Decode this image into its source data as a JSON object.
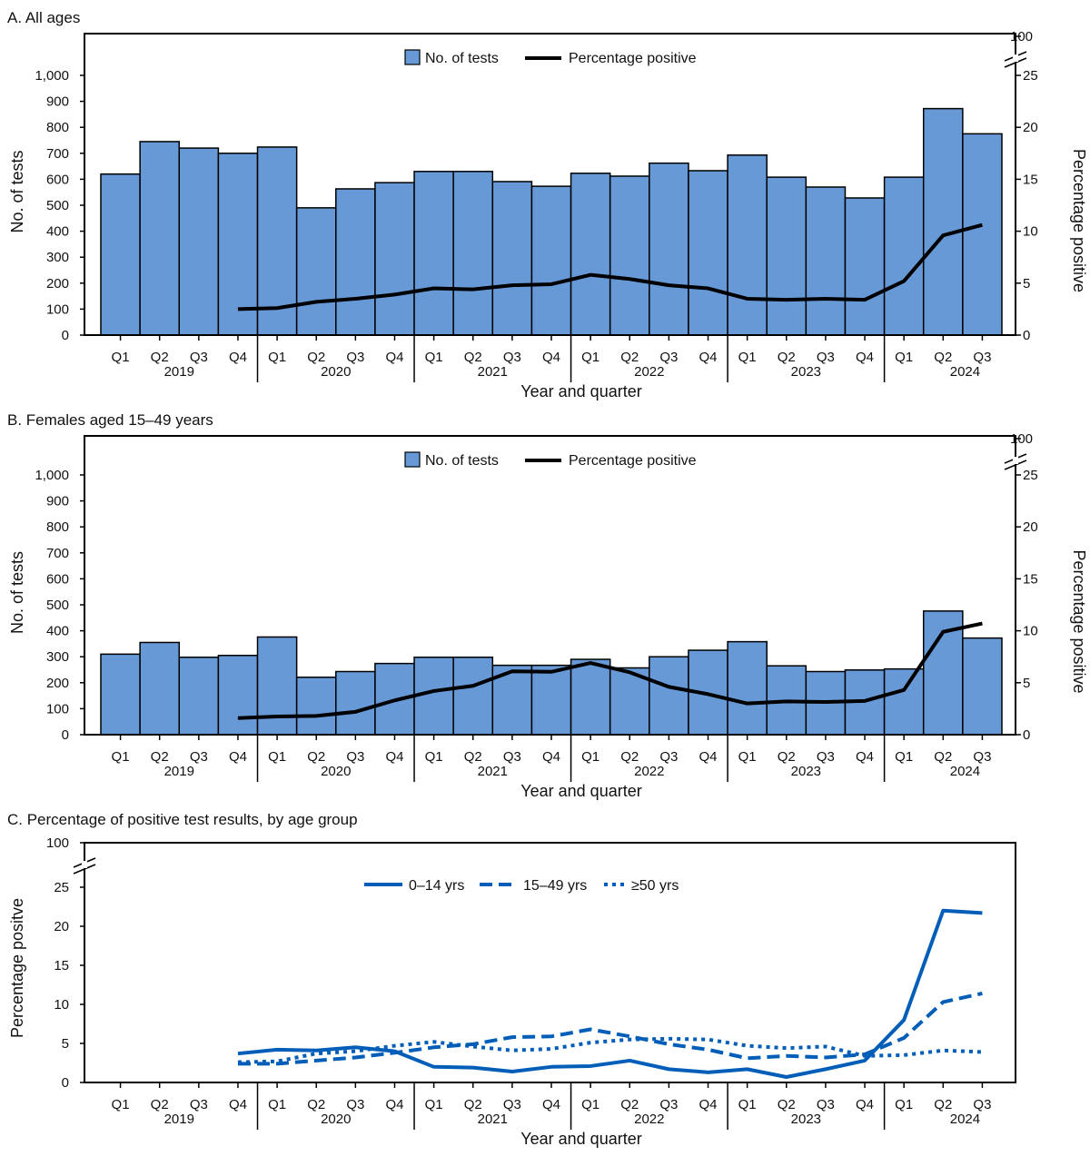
{
  "chart_data": [
    {
      "type": "bar+line",
      "title": "A. All ages",
      "categories": [
        "Q1",
        "Q2",
        "Q3",
        "Q4",
        "Q1",
        "Q2",
        "Q3",
        "Q4",
        "Q1",
        "Q2",
        "Q3",
        "Q4",
        "Q1",
        "Q2",
        "Q3",
        "Q4",
        "Q1",
        "Q2",
        "Q3",
        "Q4",
        "Q1",
        "Q2",
        "Q3"
      ],
      "years": [
        "2019",
        "2020",
        "2021",
        "2022",
        "2023",
        "2024"
      ],
      "xlabel": "Year and quarter",
      "ylabel": "No. of tests",
      "y2label": "Percentage positive",
      "ylim": [
        0,
        1000
      ],
      "yticks": [
        "0",
        "100",
        "200",
        "300",
        "400",
        "500",
        "600",
        "700",
        "800",
        "900",
        "1,000"
      ],
      "y2lim": [
        0,
        25
      ],
      "y2ticks": [
        "0",
        "5",
        "10",
        "15",
        "20",
        "25"
      ],
      "y2break_label": "100",
      "legend": [
        "No. of tests",
        "Percentage positive"
      ],
      "legend_position": "top-center",
      "bar_values": [
        620,
        745,
        720,
        700,
        724,
        490,
        563,
        587,
        630,
        630,
        591,
        573,
        623,
        612,
        662,
        633,
        693,
        608,
        570,
        528,
        608,
        872,
        775
      ],
      "line_values": [
        null,
        null,
        null,
        2.5,
        2.6,
        3.2,
        3.5,
        3.9,
        4.5,
        4.4,
        4.8,
        4.9,
        5.8,
        5.4,
        4.8,
        4.5,
        3.5,
        3.4,
        3.5,
        3.4,
        5.2,
        9.6,
        10.6
      ]
    },
    {
      "type": "bar+line",
      "title": "B. Females aged 15–49 years",
      "categories": [
        "Q1",
        "Q2",
        "Q3",
        "Q4",
        "Q1",
        "Q2",
        "Q3",
        "Q4",
        "Q1",
        "Q2",
        "Q3",
        "Q4",
        "Q1",
        "Q2",
        "Q3",
        "Q4",
        "Q1",
        "Q2",
        "Q3",
        "Q4",
        "Q1",
        "Q2",
        "Q3"
      ],
      "years": [
        "2019",
        "2020",
        "2021",
        "2022",
        "2023",
        "2024"
      ],
      "xlabel": "Year and quarter",
      "ylabel": "No. of tests",
      "y2label": "Percentage positive",
      "ylim": [
        0,
        1000
      ],
      "yticks": [
        "0",
        "100",
        "200",
        "300",
        "400",
        "500",
        "600",
        "700",
        "800",
        "900",
        "1,000"
      ],
      "y2lim": [
        0,
        25
      ],
      "y2ticks": [
        "0",
        "5",
        "10",
        "15",
        "20",
        "25"
      ],
      "y2break_label": "100",
      "legend": [
        "No. of tests",
        "Percentage positive"
      ],
      "legend_position": "top-center",
      "bar_values": [
        310,
        355,
        298,
        305,
        376,
        221,
        243,
        274,
        298,
        298,
        267,
        267,
        290,
        257,
        300,
        325,
        358,
        265,
        243,
        249,
        253,
        476,
        372
      ],
      "line_values": [
        null,
        null,
        null,
        1.6,
        1.75,
        1.8,
        2.2,
        3.3,
        4.2,
        4.7,
        6.1,
        6.05,
        6.9,
        6.0,
        4.6,
        3.9,
        3.0,
        3.2,
        3.15,
        3.25,
        4.3,
        9.9,
        10.7
      ]
    },
    {
      "type": "line",
      "title": "C. Percentage of positive test results, by age group",
      "categories": [
        "Q1",
        "Q2",
        "Q3",
        "Q4",
        "Q1",
        "Q2",
        "Q3",
        "Q4",
        "Q1",
        "Q2",
        "Q3",
        "Q4",
        "Q1",
        "Q2",
        "Q3",
        "Q4",
        "Q1",
        "Q2",
        "Q3",
        "Q4",
        "Q1",
        "Q2",
        "Q3"
      ],
      "years": [
        "2019",
        "2020",
        "2021",
        "2022",
        "2023",
        "2024"
      ],
      "xlabel": "Year and quarter",
      "ylabel": "Percentage positve",
      "ylim": [
        0,
        25
      ],
      "yticks": [
        "0",
        "5",
        "10",
        "15",
        "20",
        "25"
      ],
      "ybreak_label": "100",
      "legend_position": "top-center",
      "series": [
        {
          "name": "0–14 yrs",
          "style": "solid",
          "values": [
            null,
            null,
            null,
            3.7,
            4.2,
            4.1,
            4.5,
            4.0,
            2.0,
            1.9,
            1.4,
            2.0,
            2.1,
            2.8,
            1.7,
            1.3,
            1.7,
            0.7,
            1.7,
            2.8,
            8.0,
            22.0,
            21.7
          ]
        },
        {
          "name": "15–49 yrs",
          "style": "dashed",
          "values": [
            null,
            null,
            null,
            2.4,
            2.4,
            2.8,
            3.2,
            3.8,
            4.5,
            4.9,
            5.8,
            5.9,
            6.8,
            5.9,
            4.9,
            4.2,
            3.1,
            3.4,
            3.2,
            3.6,
            5.7,
            10.3,
            11.4
          ]
        },
        {
          "name": "≥50 yrs",
          "style": "dotted",
          "values": [
            null,
            null,
            null,
            2.6,
            2.7,
            3.7,
            4.0,
            4.7,
            5.2,
            4.6,
            4.1,
            4.3,
            5.1,
            5.5,
            5.6,
            5.5,
            4.7,
            4.4,
            4.6,
            3.4,
            3.5,
            4.1,
            3.9
          ]
        }
      ]
    }
  ],
  "colors": {
    "bar_fill": "#6699d6",
    "bar_stroke": "#000000",
    "pct_line": "#000000",
    "age_lines": "#005eb8"
  }
}
